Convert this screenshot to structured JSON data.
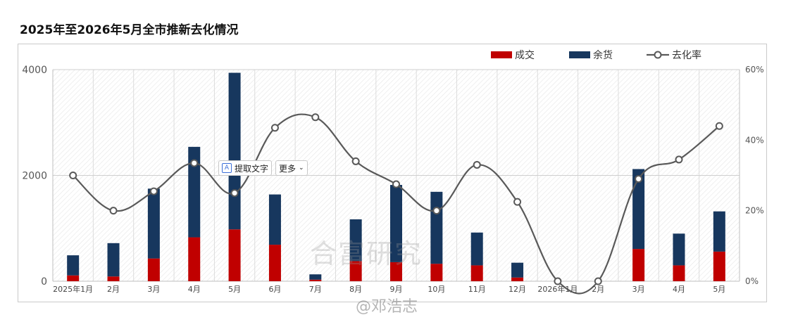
{
  "title": "2025年至2026年5月全市推新去化情况",
  "watermark_center": "合富研究",
  "watermark_weibo": "@邓浩志",
  "ocr_toolbar": {
    "extract_label": "提取文字",
    "more_label": "更多"
  },
  "chart_data": {
    "type": "bar+line",
    "categories": [
      "2025年1月",
      "2月",
      "3月",
      "4月",
      "5月",
      "6月",
      "7月",
      "8月",
      "9月",
      "10月",
      "11月",
      "12月",
      "2026年1月",
      "2月",
      "3月",
      "4月",
      "5月"
    ],
    "series": [
      {
        "name": "成交",
        "type": "stacked-bar",
        "axis": "left",
        "color": "#c00000",
        "values": [
          110,
          90,
          430,
          830,
          980,
          690,
          30,
          380,
          360,
          330,
          300,
          70,
          0,
          0,
          610,
          300,
          560
        ]
      },
      {
        "name": "余货",
        "type": "stacked-bar",
        "axis": "left",
        "color": "#17375e",
        "values": [
          380,
          630,
          1320,
          1710,
          2960,
          950,
          100,
          790,
          1460,
          1360,
          620,
          280,
          0,
          0,
          1510,
          600,
          760
        ]
      },
      {
        "name": "去化率",
        "type": "smooth-line",
        "axis": "right",
        "color": "#595959",
        "values": [
          30,
          20,
          25.5,
          33.5,
          25,
          43.5,
          46.5,
          34,
          27.5,
          20,
          33,
          22.5,
          0,
          0,
          29,
          34.5,
          44
        ]
      }
    ],
    "y_left": {
      "min": 0,
      "max": 4000,
      "ticks": [
        0,
        2000,
        4000
      ]
    },
    "y_right": {
      "min": 0,
      "max": 60,
      "ticks": [
        "0%",
        "20%",
        "40%",
        "60%"
      ]
    },
    "legend_position": "top-right",
    "grid": true
  }
}
